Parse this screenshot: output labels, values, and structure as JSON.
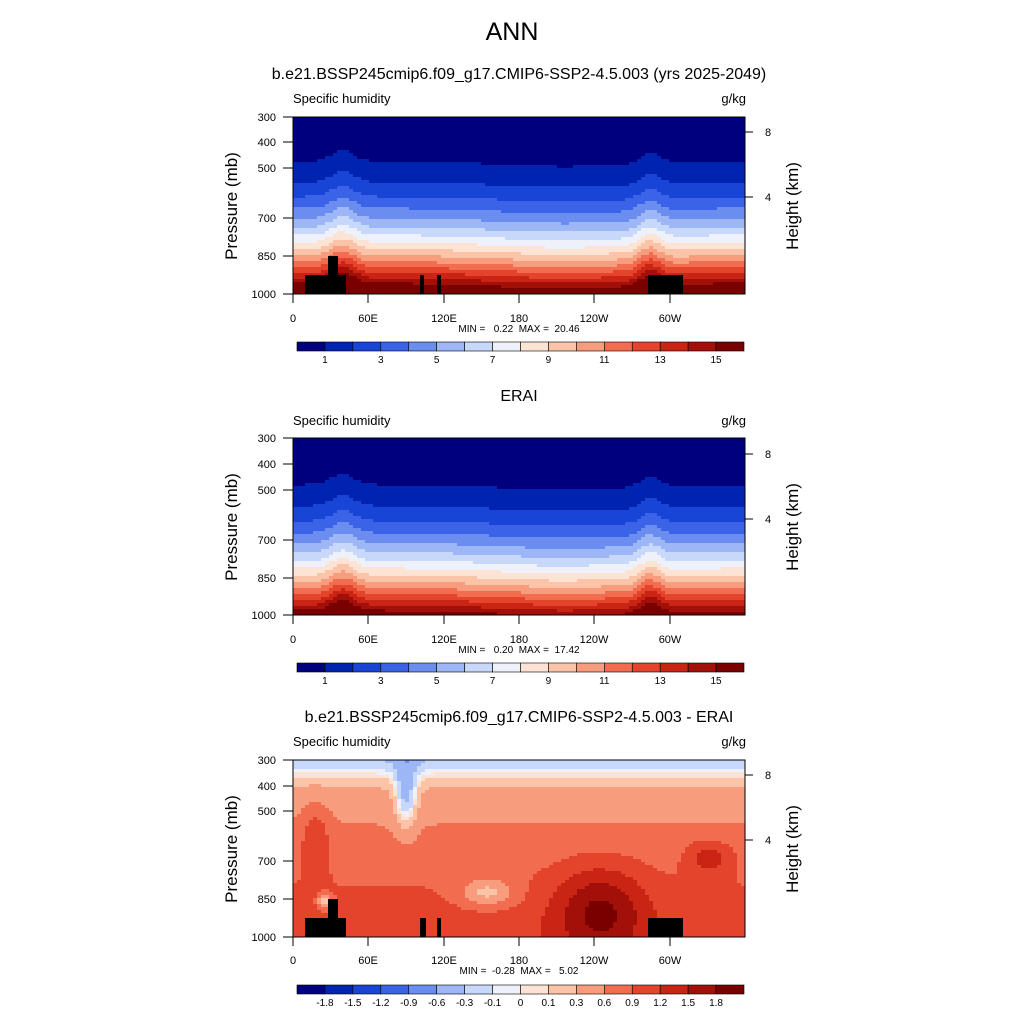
{
  "figure": {
    "title": "ANN"
  },
  "chart_data": [
    {
      "type": "heatmap",
      "title": "b.e21.BSSP245cmip6.f09_g17.CMIP6-SSP2-4.5.003 (yrs 2025-2049)",
      "left_label": "Specific humidity",
      "right_label": "g/kg",
      "xlabel": "",
      "ylabel": "Pressure (mb)",
      "y2label": "Height (km)",
      "x_ticks": [
        "0",
        "60E",
        "120E",
        "180",
        "120W",
        "60W"
      ],
      "y_ticks": [
        "300",
        "400",
        "500",
        "700",
        "850",
        "1000"
      ],
      "y2_ticks": [
        "8",
        "4"
      ],
      "ylim": [
        1000,
        300
      ],
      "stats": "MIN =   0.22  MAX =  20.46",
      "colorbar_labels": [
        "1",
        "3",
        "5",
        "7",
        "9",
        "11",
        "13",
        "15"
      ],
      "colorbar_levels": [
        0.5,
        1,
        2,
        3,
        4,
        5,
        6,
        7,
        8,
        9,
        10,
        11,
        12,
        13,
        14,
        15
      ],
      "colorbar_colors": [
        "#00007f",
        "#0024b0",
        "#1845d6",
        "#3a63e8",
        "#6b8df0",
        "#9cb6f6",
        "#c8d8fb",
        "#eef0fa",
        "#fde3d4",
        "#fbc3a8",
        "#f79c7c",
        "#f26d4f",
        "#e5442c",
        "#c92414",
        "#a3100a",
        "#7a0000"
      ]
    },
    {
      "type": "heatmap",
      "title": "ERAI",
      "left_label": "Specific humidity",
      "right_label": "g/kg",
      "xlabel": "",
      "ylabel": "Pressure (mb)",
      "y2label": "Height (km)",
      "x_ticks": [
        "0",
        "60E",
        "120E",
        "180",
        "120W",
        "60W"
      ],
      "y_ticks": [
        "300",
        "400",
        "500",
        "700",
        "850",
        "1000"
      ],
      "y2_ticks": [
        "8",
        "4"
      ],
      "ylim": [
        1000,
        300
      ],
      "stats": "MIN =   0.20  MAX =  17.42",
      "colorbar_labels": [
        "1",
        "3",
        "5",
        "7",
        "9",
        "11",
        "13",
        "15"
      ],
      "colorbar_levels": [
        0.5,
        1,
        2,
        3,
        4,
        5,
        6,
        7,
        8,
        9,
        10,
        11,
        12,
        13,
        14,
        15
      ],
      "colorbar_colors": [
        "#00007f",
        "#0024b0",
        "#1845d6",
        "#3a63e8",
        "#6b8df0",
        "#9cb6f6",
        "#c8d8fb",
        "#eef0fa",
        "#fde3d4",
        "#fbc3a8",
        "#f79c7c",
        "#f26d4f",
        "#e5442c",
        "#c92414",
        "#a3100a",
        "#7a0000"
      ]
    },
    {
      "type": "heatmap",
      "title": "b.e21.BSSP245cmip6.f09_g17.CMIP6-SSP2-4.5.003 - ERAI",
      "left_label": "Specific humidity",
      "right_label": "g/kg",
      "xlabel": "",
      "ylabel": "Pressure (mb)",
      "y2label": "Height (km)",
      "x_ticks": [
        "0",
        "60E",
        "120E",
        "180",
        "120W",
        "60W"
      ],
      "y_ticks": [
        "300",
        "400",
        "500",
        "700",
        "850",
        "1000"
      ],
      "y2_ticks": [
        "8",
        "4"
      ],
      "ylim": [
        1000,
        300
      ],
      "stats": "MIN =  -0.28  MAX =   5.02",
      "colorbar_labels": [
        "-1.8",
        "-1.5",
        "-1.2",
        "-0.9",
        "-0.6",
        "-0.3",
        "-0.1",
        "0",
        "0.1",
        "0.3",
        "0.6",
        "0.9",
        "1.2",
        "1.5",
        "1.8"
      ],
      "colorbar_levels": [
        -2.0,
        -1.8,
        -1.5,
        -1.2,
        -0.9,
        -0.6,
        -0.3,
        -0.1,
        0,
        0.1,
        0.3,
        0.6,
        0.9,
        1.2,
        1.5,
        1.8
      ],
      "colorbar_colors": [
        "#00007f",
        "#0024b0",
        "#1845d6",
        "#3a63e8",
        "#6b8df0",
        "#9cb6f6",
        "#c8d8fb",
        "#eef0fa",
        "#fde3d4",
        "#fbc3a8",
        "#f79c7c",
        "#f26d4f",
        "#e5442c",
        "#c92414",
        "#a3100a",
        "#7a0000"
      ]
    }
  ]
}
